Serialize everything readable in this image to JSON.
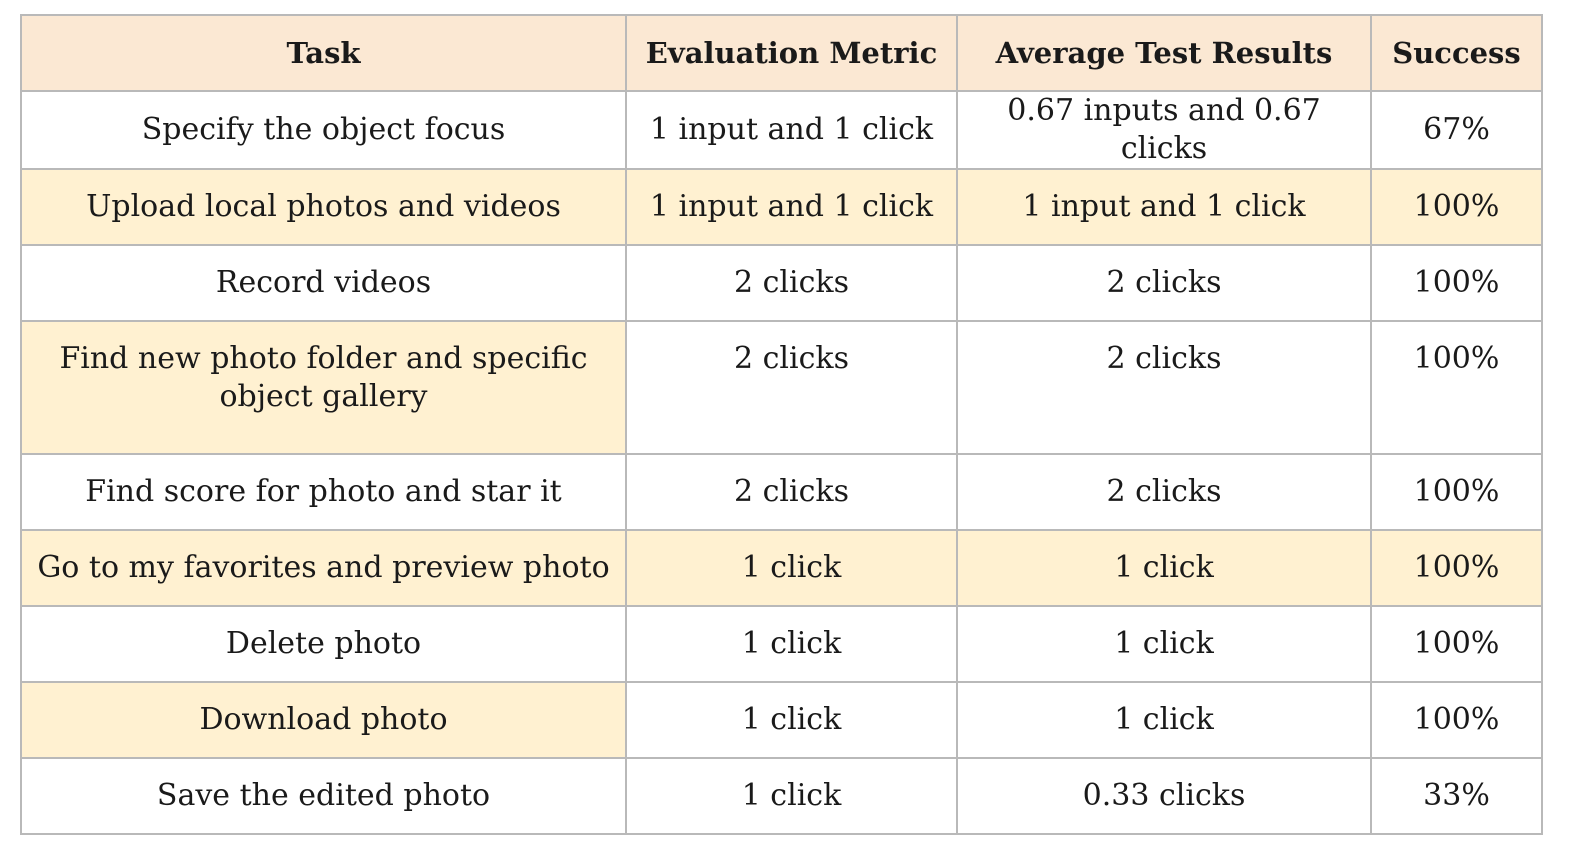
{
  "table": {
    "headers": [
      "Task",
      "Evaluation Metric",
      "Average Test Results",
      "Success"
    ],
    "rows": [
      {
        "task": "Specify the object focus",
        "metric": "1 input and 1 click",
        "avg": "0.67 inputs and 0.67 clicks",
        "success": "67%"
      },
      {
        "task": "Upload local photos and videos",
        "metric": "1 input and 1 click",
        "avg": "1 input and 1 click",
        "success": "100%"
      },
      {
        "task": "Record videos",
        "metric": "2 clicks",
        "avg": "2 clicks",
        "success": "100%"
      },
      {
        "task": "Find new photo folder and specific object gallery",
        "metric": "2 clicks",
        "avg": "2 clicks",
        "success": "100%"
      },
      {
        "task": "Find score for photo and star it",
        "metric": "2 clicks",
        "avg": "2 clicks",
        "success": "100%"
      },
      {
        "task": "Go to my favorites and preview photo",
        "metric": "1 click",
        "avg": "1 click",
        "success": "100%"
      },
      {
        "task": "Delete photo",
        "metric": "1 click",
        "avg": "1 click",
        "success": "100%"
      },
      {
        "task": "Download photo",
        "metric": "1 click",
        "avg": "1 click",
        "success": "100%"
      },
      {
        "task": "Save the edited photo",
        "metric": "1 click",
        "avg": "0.33 clicks",
        "success": "33%"
      }
    ]
  },
  "colors": {
    "header_bg": "#fbe8d3",
    "highlight_bg": "#fff1d1",
    "border": "#b9b9b9"
  }
}
